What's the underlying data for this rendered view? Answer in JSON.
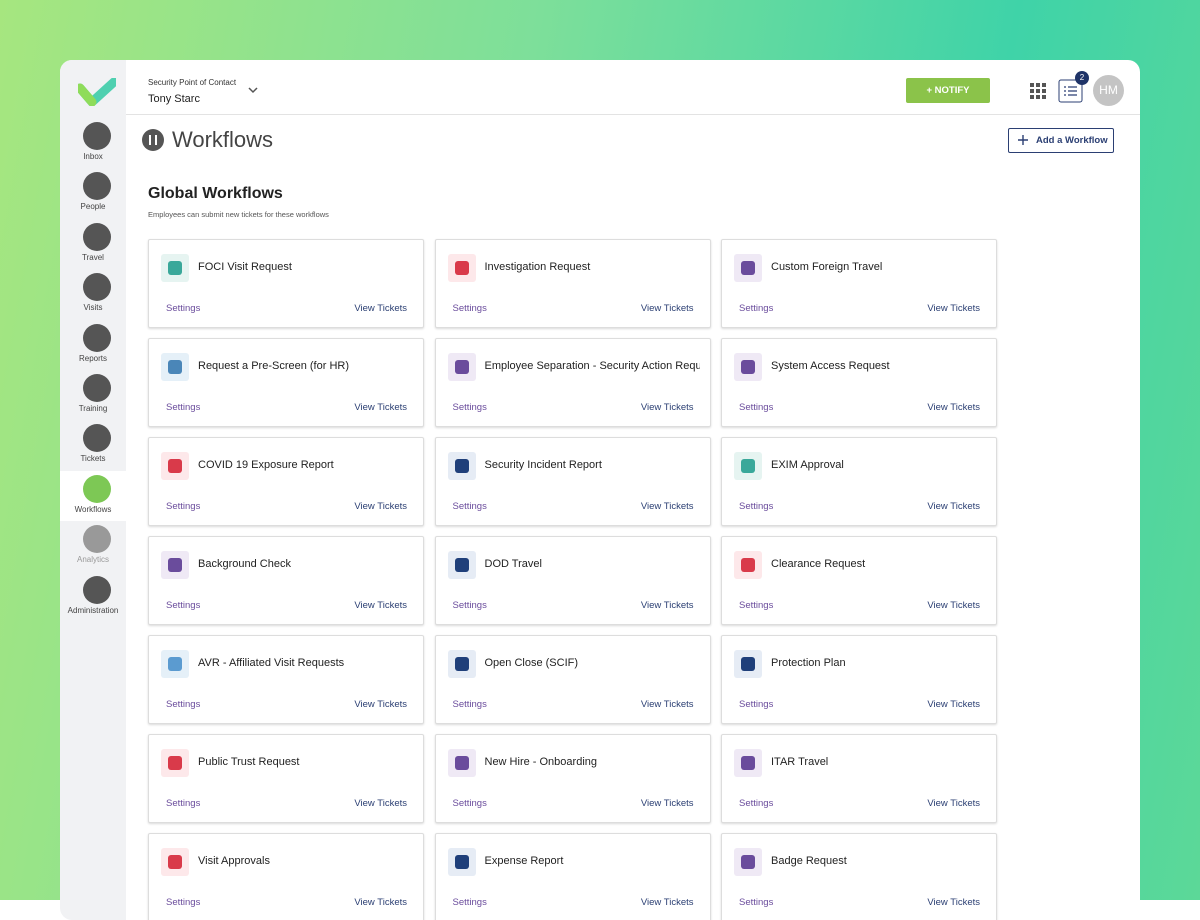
{
  "header": {
    "role": "Security Point of Contact",
    "user": "Tony Starc",
    "notify": "+ NOTIFY",
    "badge": "2",
    "avatar": "HM"
  },
  "sidebar": [
    "Inbox",
    "People",
    "Travel",
    "Visits",
    "Reports",
    "Training",
    "Tickets",
    "Workflows",
    "Analytics",
    "Administration"
  ],
  "page": {
    "title": "Workflows",
    "add_button": "Add a Workflow"
  },
  "section": {
    "title": "Global Workflows",
    "subtitle": "Employees can submit new tickets for these workflows"
  },
  "workflows": [
    {
      "name": "FOCI Visit Request",
      "settings": "Settings",
      "view": "View Tickets"
    },
    {
      "name": "Investigation Request",
      "settings": "Settings",
      "view": "View Tickets"
    },
    {
      "name": "Custom Foreign Travel",
      "settings": "Settings",
      "view": "View Tickets"
    },
    {
      "name": "Request a Pre-Screen (for HR)",
      "settings": "Settings",
      "view": "View Tickets"
    },
    {
      "name": "Employee Separation - Security Action Requ",
      "settings": "Settings",
      "view": "View Tickets"
    },
    {
      "name": "System Access Request",
      "settings": "Settings",
      "view": "View Tickets"
    },
    {
      "name": "COVID 19 Exposure Report",
      "settings": "Settings",
      "view": "View Tickets"
    },
    {
      "name": "Security Incident Report",
      "settings": "Settings",
      "view": "View Tickets"
    },
    {
      "name": "EXIM Approval",
      "settings": "Settings",
      "view": "View Tickets"
    },
    {
      "name": "Background Check",
      "settings": "Settings",
      "view": "View Tickets"
    },
    {
      "name": "DOD Travel",
      "settings": "Settings",
      "view": "View Tickets"
    },
    {
      "name": "Clearance Request",
      "settings": "Settings",
      "view": "View Tickets"
    },
    {
      "name": "AVR - Affiliated Visit Requests",
      "settings": "Settings",
      "view": "View Tickets"
    },
    {
      "name": "Open Close (SCIF)",
      "settings": "Settings",
      "view": "View Tickets"
    },
    {
      "name": "Protection Plan",
      "settings": "Settings",
      "view": "View Tickets"
    },
    {
      "name": "Public Trust Request",
      "settings": "Settings",
      "view": "View Tickets"
    },
    {
      "name": "New Hire - Onboarding",
      "settings": "Settings",
      "view": "View Tickets"
    },
    {
      "name": "ITAR Travel",
      "settings": "Settings",
      "view": "View Tickets"
    },
    {
      "name": "Visit Approvals",
      "settings": "Settings",
      "view": "View Tickets"
    },
    {
      "name": "Expense Report",
      "settings": "Settings",
      "view": "View Tickets"
    },
    {
      "name": "Badge Request",
      "settings": "Settings",
      "view": "View Tickets"
    }
  ]
}
